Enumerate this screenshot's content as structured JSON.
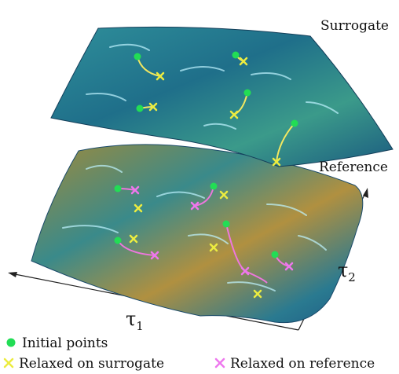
{
  "labels": {
    "surrogate": "Surrogate",
    "reference": "Reference"
  },
  "axes": {
    "tau1": {
      "symbol": "τ",
      "subscript": "1"
    },
    "tau2": {
      "symbol": "τ",
      "subscript": "2"
    }
  },
  "legend": {
    "initial": "Initial points",
    "relaxed_surrogate": "Relaxed on surrogate",
    "relaxed_reference": "Relaxed on reference"
  }
}
